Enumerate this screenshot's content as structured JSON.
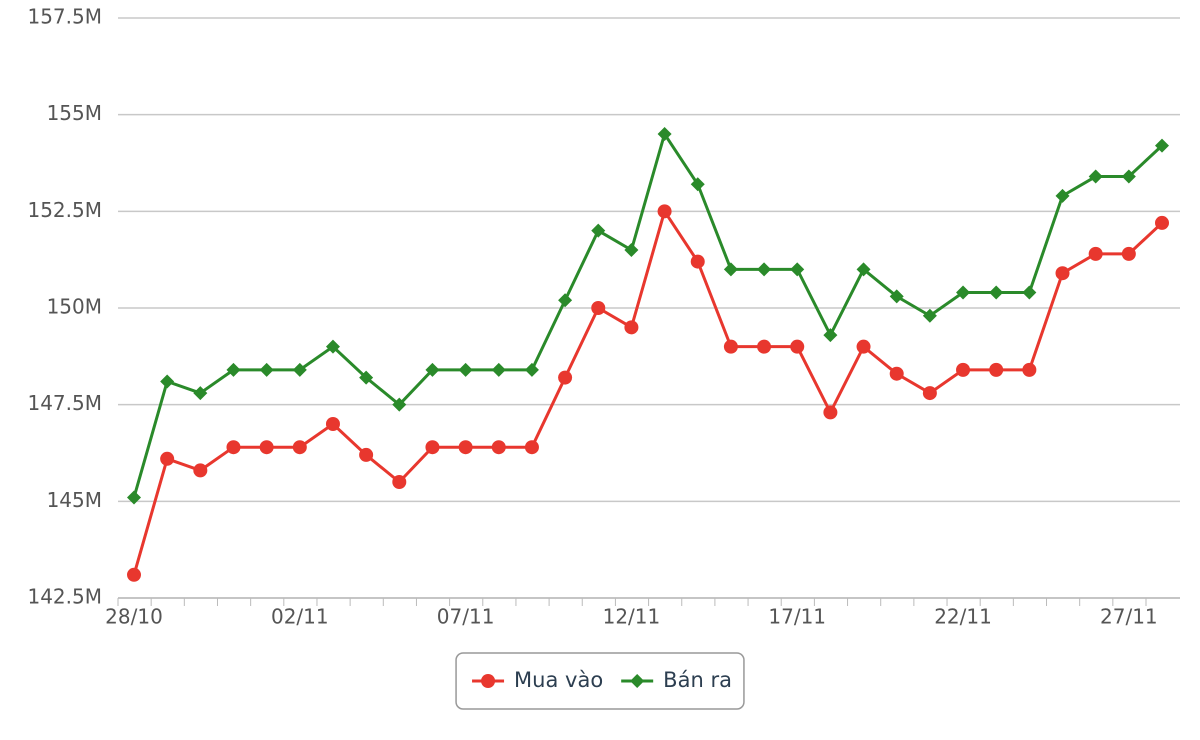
{
  "chart_data": {
    "type": "line",
    "categories": [
      "28/10",
      null,
      null,
      null,
      null,
      "02/11",
      null,
      null,
      null,
      null,
      "07/11",
      null,
      null,
      null,
      null,
      "12/11",
      null,
      null,
      null,
      null,
      "17/11",
      null,
      null,
      null,
      null,
      "22/11",
      null,
      null,
      null,
      null,
      "27/11",
      null
    ],
    "series": [
      {
        "name": "Mua vào",
        "color": "#e8372e",
        "marker": "circle",
        "values": [
          143100000,
          146100000,
          145800000,
          146400000,
          146400000,
          146400000,
          147000000,
          146200000,
          145500000,
          146400000,
          146400000,
          146400000,
          146400000,
          148200000,
          150000000,
          149500000,
          152500000,
          151200000,
          149000000,
          149000000,
          149000000,
          147300000,
          149000000,
          148300000,
          147800000,
          148400000,
          148400000,
          148400000,
          150900000,
          151400000,
          151400000,
          152200000
        ]
      },
      {
        "name": "Bán ra",
        "color": "#2a8a2a",
        "marker": "diamond",
        "values": [
          145100000,
          148100000,
          147800000,
          148400000,
          148400000,
          148400000,
          149000000,
          148200000,
          147500000,
          148400000,
          148400000,
          148400000,
          148400000,
          150200000,
          152000000,
          151500000,
          154500000,
          153200000,
          151000000,
          151000000,
          151000000,
          149300000,
          151000000,
          150300000,
          149800000,
          150400000,
          150400000,
          150400000,
          152900000,
          153400000,
          153400000,
          154200000
        ]
      }
    ],
    "ylim": [
      142500000,
      157500000
    ],
    "yticks": [
      {
        "value": 142500000,
        "label": "142.5M"
      },
      {
        "value": 145000000,
        "label": "145M"
      },
      {
        "value": 147500000,
        "label": "147.5M"
      },
      {
        "value": 150000000,
        "label": "150M"
      },
      {
        "value": 152500000,
        "label": "152.5M"
      },
      {
        "value": 155000000,
        "label": "155M"
      },
      {
        "value": 157500000,
        "label": "157.5M"
      }
    ],
    "grid": true,
    "legend": "bottom"
  }
}
